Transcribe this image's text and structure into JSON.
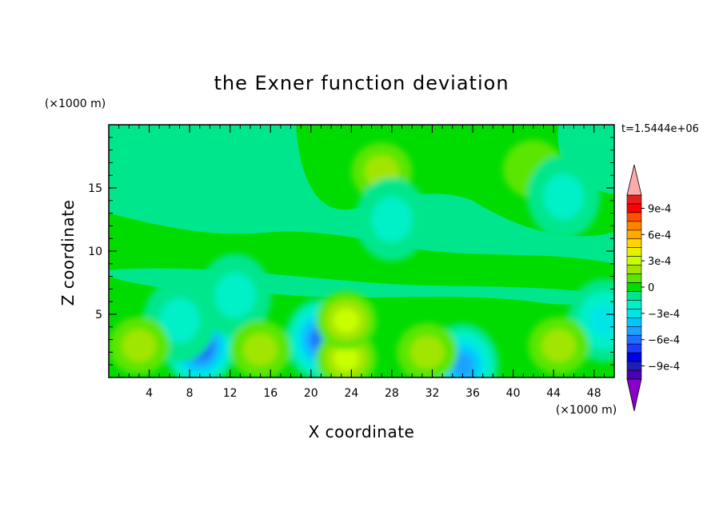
{
  "chart_data": {
    "type": "heatmap",
    "title": "the Exner function deviation",
    "xlabel": "X coordinate",
    "ylabel": "Z coordinate",
    "x_unit": "(×1000 m)",
    "y_unit": "(×1000 m)",
    "time_label": "t=1.5444e+06",
    "xlim": [
      0,
      50
    ],
    "ylim": [
      0,
      20
    ],
    "x_ticks": [
      4,
      8,
      12,
      16,
      20,
      24,
      28,
      32,
      36,
      40,
      44,
      48
    ],
    "y_ticks": [
      5,
      10,
      15
    ],
    "colorbar": {
      "levels": [
        -0.0011,
        -0.001,
        -0.0009,
        -0.0008,
        -0.0007,
        -0.0006,
        -0.0005,
        -0.0004,
        -0.0003,
        -0.0002,
        -0.0001,
        0,
        0.0001,
        0.0002,
        0.0003,
        0.0004,
        0.0005,
        0.0006,
        0.0007,
        0.0008,
        0.0009,
        0.001,
        0.0011
      ],
      "colors": [
        "#8a00c8",
        "#4b00b4",
        "#1e1eb4",
        "#0000e6",
        "#1e3cff",
        "#1e6eff",
        "#1ea0ff",
        "#00c8ff",
        "#00e6e6",
        "#00f0c8",
        "#00e68c",
        "#00dc00",
        "#5ae600",
        "#a0e600",
        "#c8ff00",
        "#e6f000",
        "#ffd200",
        "#ffaa00",
        "#ff8200",
        "#ff5000",
        "#ff0000",
        "#e61e1e",
        "#ffaaaa"
      ],
      "tick_labels": [
        "9e-4",
        "6e-4",
        "3e-4",
        "0",
        "−3e-4",
        "−6e-4",
        "−9e-4"
      ],
      "tick_values": [
        0.0009,
        0.0006,
        0.0003,
        0,
        -0.0003,
        -0.0006,
        -0.0009
      ]
    },
    "features": [
      {
        "x": 9.0,
        "z": 2.5,
        "value": -0.0007
      },
      {
        "x": 21.0,
        "z": 3.0,
        "value": -0.0006
      },
      {
        "x": 35.0,
        "z": 1.0,
        "value": -0.0005
      },
      {
        "x": 49.0,
        "z": 4.5,
        "value": -0.0003
      },
      {
        "x": 7.0,
        "z": 4.5,
        "value": -0.0002
      },
      {
        "x": 12.5,
        "z": 6.5,
        "value": -0.0002
      },
      {
        "x": 27.0,
        "z": 16.3,
        "value": 0.0002
      },
      {
        "x": 42.0,
        "z": 16.5,
        "value": 0.0001
      },
      {
        "x": 28.0,
        "z": 12.5,
        "value": -0.0002
      },
      {
        "x": 45.0,
        "z": 14.3,
        "value": -0.0002
      },
      {
        "x": 3.0,
        "z": 2.5,
        "value": 0.0002
      },
      {
        "x": 15.0,
        "z": 2.2,
        "value": 0.0002
      },
      {
        "x": 23.5,
        "z": 1.5,
        "value": 0.0003
      },
      {
        "x": 31.5,
        "z": 2.0,
        "value": 0.0002
      },
      {
        "x": 44.5,
        "z": 2.5,
        "value": 0.0002
      },
      {
        "x": 23.5,
        "z": 4.5,
        "value": 0.0003
      }
    ]
  }
}
